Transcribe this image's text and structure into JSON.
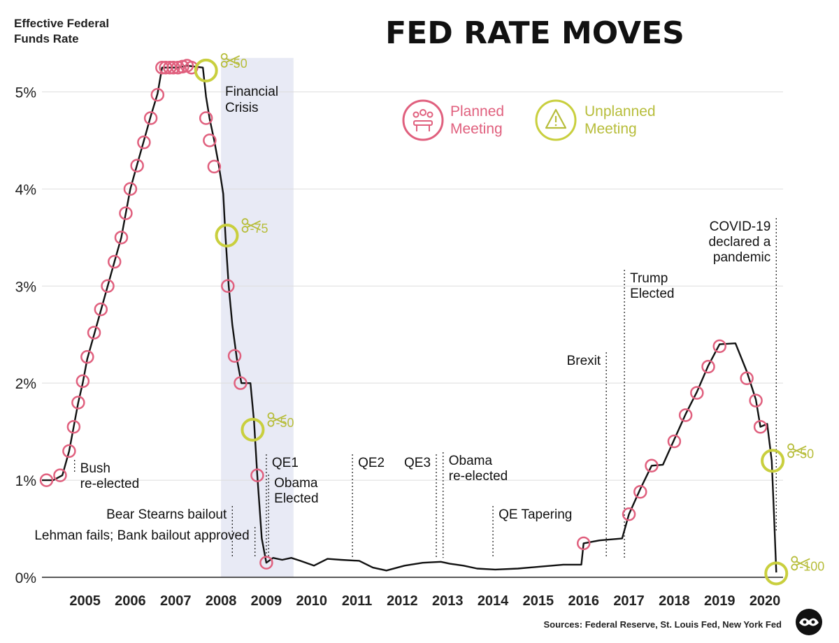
{
  "chart_data": {
    "type": "line",
    "title": "FED RATE MOVES",
    "ylabel_line1": "Effective Federal",
    "ylabel_line2": "Funds Rate",
    "ylim": [
      0,
      5.5
    ],
    "xlim": [
      2004.0,
      2020.35
    ],
    "yticks": [
      {
        "v": 0,
        "label": "0%"
      },
      {
        "v": 1,
        "label": "1%"
      },
      {
        "v": 2,
        "label": "2%"
      },
      {
        "v": 3,
        "label": "3%"
      },
      {
        "v": 4,
        "label": "4%"
      },
      {
        "v": 5,
        "label": "5%"
      }
    ],
    "xticks": [
      {
        "v": 2004.95,
        "label": "2005"
      },
      {
        "v": 2005.95,
        "label": "2006"
      },
      {
        "v": 2006.95,
        "label": "2007"
      },
      {
        "v": 2007.95,
        "label": "2008"
      },
      {
        "v": 2008.95,
        "label": "2009"
      },
      {
        "v": 2009.95,
        "label": "2010"
      },
      {
        "v": 2010.95,
        "label": "2011"
      },
      {
        "v": 2011.95,
        "label": "2012"
      },
      {
        "v": 2012.95,
        "label": "2013"
      },
      {
        "v": 2013.95,
        "label": "2014"
      },
      {
        "v": 2014.95,
        "label": "2015"
      },
      {
        "v": 2015.95,
        "label": "2016"
      },
      {
        "v": 2016.95,
        "label": "2017"
      },
      {
        "v": 2017.95,
        "label": "2018"
      },
      {
        "v": 2018.95,
        "label": "2019"
      },
      {
        "v": 2019.95,
        "label": "2020"
      }
    ],
    "series": [
      {
        "values": [
          [
            2004.0,
            1.0
          ],
          [
            2004.25,
            1.0
          ],
          [
            2004.45,
            1.05
          ],
          [
            2004.6,
            1.3
          ],
          [
            2004.7,
            1.55
          ],
          [
            2004.8,
            1.8
          ],
          [
            2004.9,
            2.0
          ],
          [
            2005.0,
            2.25
          ],
          [
            2005.15,
            2.5
          ],
          [
            2005.3,
            2.75
          ],
          [
            2005.45,
            3.0
          ],
          [
            2005.6,
            3.25
          ],
          [
            2005.75,
            3.5
          ],
          [
            2005.85,
            3.75
          ],
          [
            2005.95,
            4.0
          ],
          [
            2006.1,
            4.25
          ],
          [
            2006.25,
            4.5
          ],
          [
            2006.4,
            4.75
          ],
          [
            2006.55,
            4.98
          ],
          [
            2006.65,
            5.25
          ],
          [
            2007.0,
            5.25
          ],
          [
            2007.2,
            5.27
          ],
          [
            2007.55,
            5.25
          ],
          [
            2007.62,
            4.95
          ],
          [
            2007.7,
            4.72
          ],
          [
            2007.8,
            4.5
          ],
          [
            2007.9,
            4.25
          ],
          [
            2008.0,
            3.95
          ],
          [
            2008.05,
            3.5
          ],
          [
            2008.12,
            3.0
          ],
          [
            2008.2,
            2.6
          ],
          [
            2008.3,
            2.25
          ],
          [
            2008.4,
            2.0
          ],
          [
            2008.6,
            2.0
          ],
          [
            2008.68,
            1.6
          ],
          [
            2008.75,
            1.05
          ],
          [
            2008.85,
            0.4
          ],
          [
            2008.95,
            0.15
          ],
          [
            2009.1,
            0.2
          ],
          [
            2009.3,
            0.18
          ],
          [
            2009.5,
            0.2
          ],
          [
            2009.7,
            0.17
          ],
          [
            2010.0,
            0.12
          ],
          [
            2010.3,
            0.19
          ],
          [
            2010.6,
            0.18
          ],
          [
            2011.0,
            0.17
          ],
          [
            2011.3,
            0.1
          ],
          [
            2011.6,
            0.07
          ],
          [
            2012.0,
            0.12
          ],
          [
            2012.4,
            0.15
          ],
          [
            2012.8,
            0.16
          ],
          [
            2013.0,
            0.14
          ],
          [
            2013.3,
            0.12
          ],
          [
            2013.6,
            0.09
          ],
          [
            2014.0,
            0.08
          ],
          [
            2014.5,
            0.09
          ],
          [
            2015.0,
            0.11
          ],
          [
            2015.5,
            0.13
          ],
          [
            2015.9,
            0.13
          ],
          [
            2015.95,
            0.35
          ],
          [
            2016.3,
            0.38
          ],
          [
            2016.8,
            0.4
          ],
          [
            2016.95,
            0.65
          ],
          [
            2017.2,
            0.91
          ],
          [
            2017.45,
            1.15
          ],
          [
            2017.7,
            1.16
          ],
          [
            2017.95,
            1.42
          ],
          [
            2018.2,
            1.68
          ],
          [
            2018.45,
            1.91
          ],
          [
            2018.7,
            2.18
          ],
          [
            2018.95,
            2.4
          ],
          [
            2019.3,
            2.41
          ],
          [
            2019.55,
            2.12
          ],
          [
            2019.75,
            1.83
          ],
          [
            2019.85,
            1.55
          ],
          [
            2020.0,
            1.58
          ],
          [
            2020.1,
            1.2
          ],
          [
            2020.15,
            0.65
          ],
          [
            2020.2,
            0.05
          ]
        ]
      }
    ],
    "planned_meetings": [
      [
        2004.1,
        1.0
      ],
      [
        2004.4,
        1.05
      ],
      [
        2004.6,
        1.3
      ],
      [
        2004.7,
        1.55
      ],
      [
        2004.8,
        1.8
      ],
      [
        2004.9,
        2.02
      ],
      [
        2005.0,
        2.27
      ],
      [
        2005.15,
        2.52
      ],
      [
        2005.3,
        2.76
      ],
      [
        2005.45,
        3.0
      ],
      [
        2005.6,
        3.25
      ],
      [
        2005.75,
        3.5
      ],
      [
        2005.85,
        3.75
      ],
      [
        2005.95,
        4.0
      ],
      [
        2006.1,
        4.24
      ],
      [
        2006.25,
        4.48
      ],
      [
        2006.4,
        4.73
      ],
      [
        2006.55,
        4.97
      ],
      [
        2006.65,
        5.25
      ],
      [
        2006.73,
        5.25
      ],
      [
        2006.82,
        5.25
      ],
      [
        2006.9,
        5.25
      ],
      [
        2007.0,
        5.25
      ],
      [
        2007.1,
        5.26
      ],
      [
        2007.2,
        5.27
      ],
      [
        2007.3,
        5.25
      ],
      [
        2007.62,
        4.73
      ],
      [
        2007.7,
        4.5
      ],
      [
        2007.8,
        4.23
      ],
      [
        2008.1,
        3.0
      ],
      [
        2008.25,
        2.28
      ],
      [
        2008.38,
        2.0
      ],
      [
        2008.75,
        1.05
      ],
      [
        2008.95,
        0.15
      ],
      [
        2015.95,
        0.35
      ],
      [
        2016.95,
        0.65
      ],
      [
        2017.2,
        0.88
      ],
      [
        2017.45,
        1.15
      ],
      [
        2017.95,
        1.4
      ],
      [
        2018.2,
        1.67
      ],
      [
        2018.45,
        1.9
      ],
      [
        2018.7,
        2.17
      ],
      [
        2018.95,
        2.38
      ],
      [
        2019.55,
        2.05
      ],
      [
        2019.75,
        1.82
      ],
      [
        2019.85,
        1.55
      ]
    ],
    "unplanned_meetings": [
      {
        "x": 2007.62,
        "y": 5.22,
        "label": "-50"
      },
      {
        "x": 2008.08,
        "y": 3.52,
        "label": "-75"
      },
      {
        "x": 2008.65,
        "y": 1.52,
        "label": "-50"
      },
      {
        "x": 2020.12,
        "y": 1.2,
        "label": "-50"
      },
      {
        "x": 2020.2,
        "y": 0.04,
        "label": "-100"
      }
    ],
    "shaded_period": {
      "label_line1": "Financial",
      "label_line2": "Crisis",
      "x0": 2007.95,
      "x1": 2009.55
    },
    "annotations": [
      {
        "x": 2004.72,
        "lines": [
          "Bush",
          "re-elected"
        ],
        "text_side": "right"
      },
      {
        "x": 2008.2,
        "lines": [
          "Bear Stearns bailout"
        ],
        "text_side": "left"
      },
      {
        "x": 2008.7,
        "lines": [
          "Lehman fails; Bank bailout approved"
        ],
        "text_side": "left"
      },
      {
        "x": 2008.95,
        "lines": [
          "QE1"
        ],
        "text_side": "right"
      },
      {
        "x": 2009.0,
        "lines": [
          "Obama",
          "Elected"
        ],
        "text_side": "right"
      },
      {
        "x": 2010.85,
        "lines": [
          "QE2"
        ],
        "text_side": "right"
      },
      {
        "x": 2012.7,
        "lines": [
          "QE3"
        ],
        "text_side": "left"
      },
      {
        "x": 2012.85,
        "lines": [
          "Obama",
          "re-elected"
        ],
        "text_side": "right"
      },
      {
        "x": 2013.95,
        "lines": [
          "QE Tapering"
        ],
        "text_side": "right"
      },
      {
        "x": 2016.45,
        "lines": [
          "Brexit"
        ],
        "text_side": "left"
      },
      {
        "x": 2016.85,
        "lines": [
          "Trump",
          "Elected"
        ],
        "text_side": "right"
      },
      {
        "x": 2020.2,
        "lines": [
          "COVID-19",
          "declared a",
          "pandemic"
        ],
        "text_side": "left"
      }
    ],
    "legend": {
      "planned": [
        "Planned",
        "Meeting"
      ],
      "unplanned": [
        "Unplanned",
        "Meeting"
      ],
      "placement": "top-center"
    },
    "grid": true,
    "source": "Sources: Federal Reserve, St. Louis Fed, New York Fed"
  },
  "colors": {
    "line": "#111111",
    "planned": "#e0607e",
    "unplanned": "#c9cf3e",
    "shade": "#e8eaf5",
    "grid": "#dddddd"
  }
}
